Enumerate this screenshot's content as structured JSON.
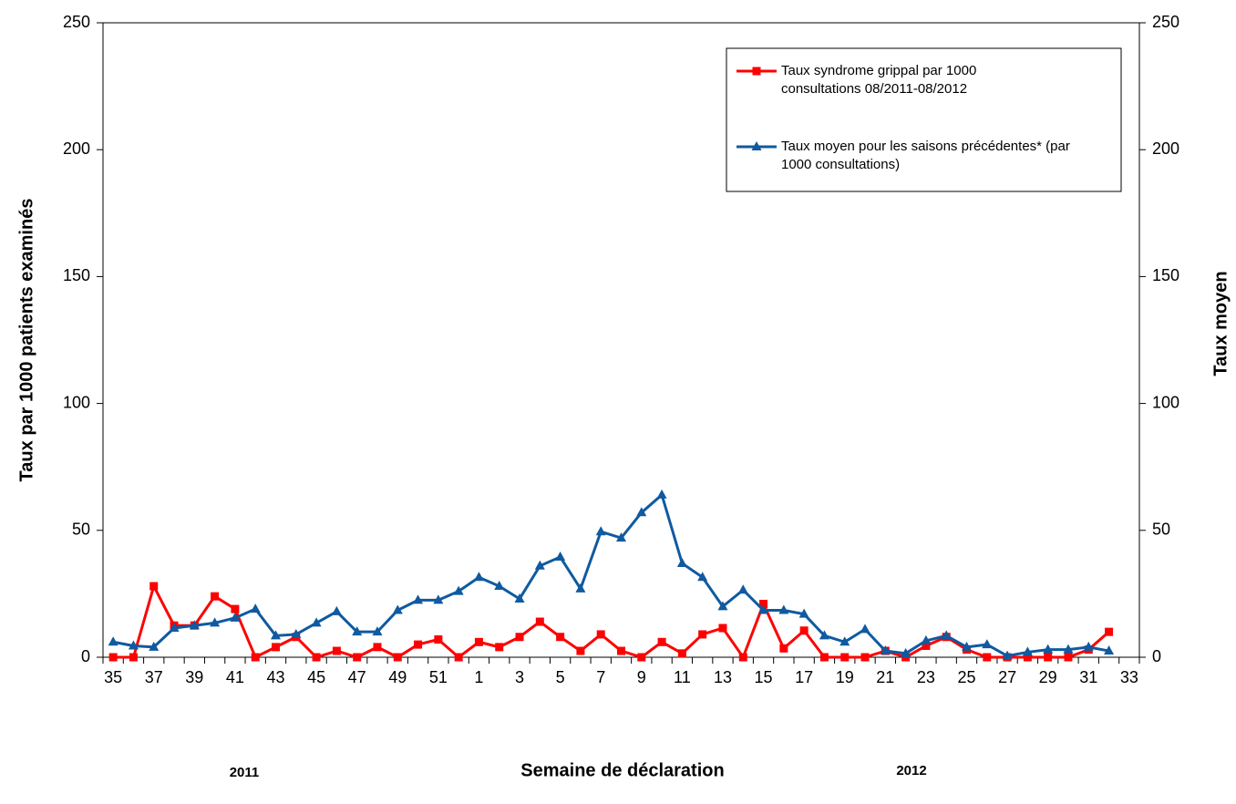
{
  "chart_data": {
    "type": "line",
    "y_label": "Taux par 1000 patients examinés",
    "y2_label": "Taux moyen",
    "x_label": "Semaine de déclaration",
    "year_labels": [
      "2011",
      "2012"
    ],
    "categories": [
      "35",
      null,
      "37",
      null,
      "39",
      null,
      "41",
      null,
      "43",
      null,
      "45",
      null,
      "47",
      null,
      "49",
      null,
      "51",
      null,
      "1",
      null,
      "3",
      null,
      "5",
      null,
      "7",
      null,
      "9",
      null,
      "11",
      null,
      "13",
      null,
      "15",
      null,
      "17",
      null,
      "19",
      null,
      "21",
      null,
      "23",
      null,
      "25",
      null,
      "27",
      null,
      "29",
      null,
      "31",
      null,
      "33"
    ],
    "series": [
      {
        "name": "Taux syndrome grippal par 1000 consultations 08/2011-08/2012",
        "color": "#ff0000",
        "marker": "square",
        "values": [
          0,
          0,
          28,
          12.5,
          12.5,
          24,
          19,
          0,
          4,
          8,
          0,
          2.5,
          0,
          4,
          0,
          5,
          7,
          0,
          6,
          4,
          8,
          14,
          8,
          2.5,
          9,
          2.5,
          0,
          6,
          1.5,
          9,
          11.5,
          0,
          21,
          3.5,
          10.5,
          0,
          0,
          0,
          2.5,
          0,
          4.5,
          8,
          3,
          0,
          0,
          0,
          0,
          0,
          3,
          10,
          null
        ]
      },
      {
        "name": "Taux moyen pour les saisons précédentes* (par 1000 consultations)",
        "color": "#0f5aa0",
        "marker": "triangle",
        "axis": "y2",
        "values": [
          6,
          4.5,
          4,
          11.5,
          12.5,
          13.5,
          15.5,
          19,
          8.5,
          9,
          13.5,
          18,
          10,
          10,
          18.5,
          22.5,
          22.5,
          26,
          31.5,
          28,
          23,
          36,
          39.5,
          27,
          49.5,
          47,
          57,
          64,
          37,
          31.5,
          20,
          26.5,
          18.5,
          18.5,
          17,
          8.5,
          6,
          11,
          2.5,
          1.5,
          6.5,
          8.5,
          4,
          5,
          0.5,
          2,
          3,
          3,
          4,
          2.5,
          null
        ]
      }
    ],
    "ylim": [
      0,
      250
    ],
    "yticks": [
      0,
      50,
      100,
      150,
      200,
      250
    ],
    "y2lim": [
      0,
      250
    ],
    "y2ticks": [
      0,
      50,
      100,
      150,
      200,
      250
    ]
  }
}
